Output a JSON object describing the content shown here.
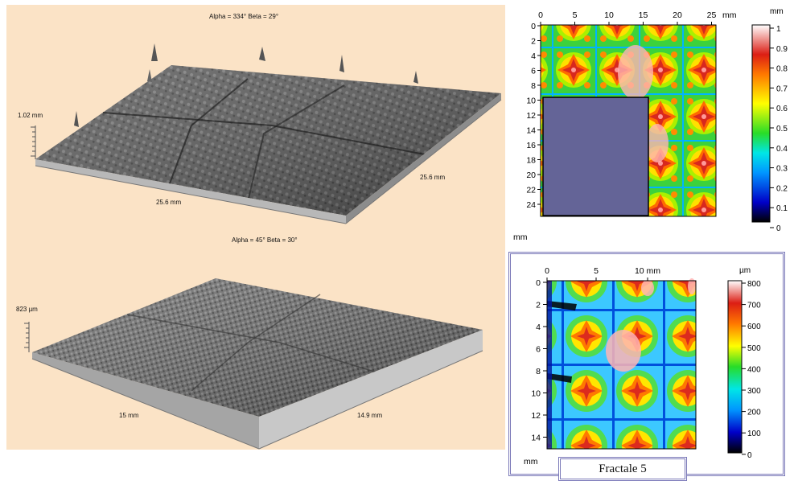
{
  "top_view": {
    "angles": "Alpha = 334°    Beta = 29°",
    "z_label": "1.02 mm",
    "x_label": "25.6 mm",
    "y_label": "25.6 mm"
  },
  "bottom_view": {
    "angles": "Alpha = 45°    Beta = 30°",
    "z_label": "823 µm",
    "x_label": "15 mm",
    "y_label": "14.9 mm"
  },
  "map_top": {
    "x_unit": "mm",
    "y_unit": "mm",
    "x_ticks": [
      "0",
      "5",
      "10",
      "15",
      "20",
      "25"
    ],
    "y_ticks": [
      "0",
      "2",
      "4",
      "6",
      "8",
      "10",
      "12",
      "14",
      "16",
      "18",
      "20",
      "22",
      "24"
    ],
    "colorbar_unit": "mm",
    "colorbar_ticks": [
      "1",
      "0.9",
      "0.8",
      "0.7",
      "0.6",
      "0.5",
      "0.4",
      "0.3",
      "0.2",
      "0.1",
      "0"
    ],
    "overlay_color": "#646497"
  },
  "map_bottom": {
    "x_ticks": [
      "0",
      "5",
      "10 mm"
    ],
    "y_ticks": [
      "0",
      "2",
      "4",
      "6",
      "8",
      "10",
      "12",
      "14"
    ],
    "y_unit": "mm",
    "colorbar_unit": "µm",
    "colorbar_ticks": [
      "800",
      "700",
      "600",
      "500",
      "400",
      "300",
      "200",
      "100",
      "0"
    ]
  },
  "caption": "Fractale 5",
  "colors": {
    "panel_bg": "#fbe3c6",
    "frame": "#7a78b8"
  }
}
